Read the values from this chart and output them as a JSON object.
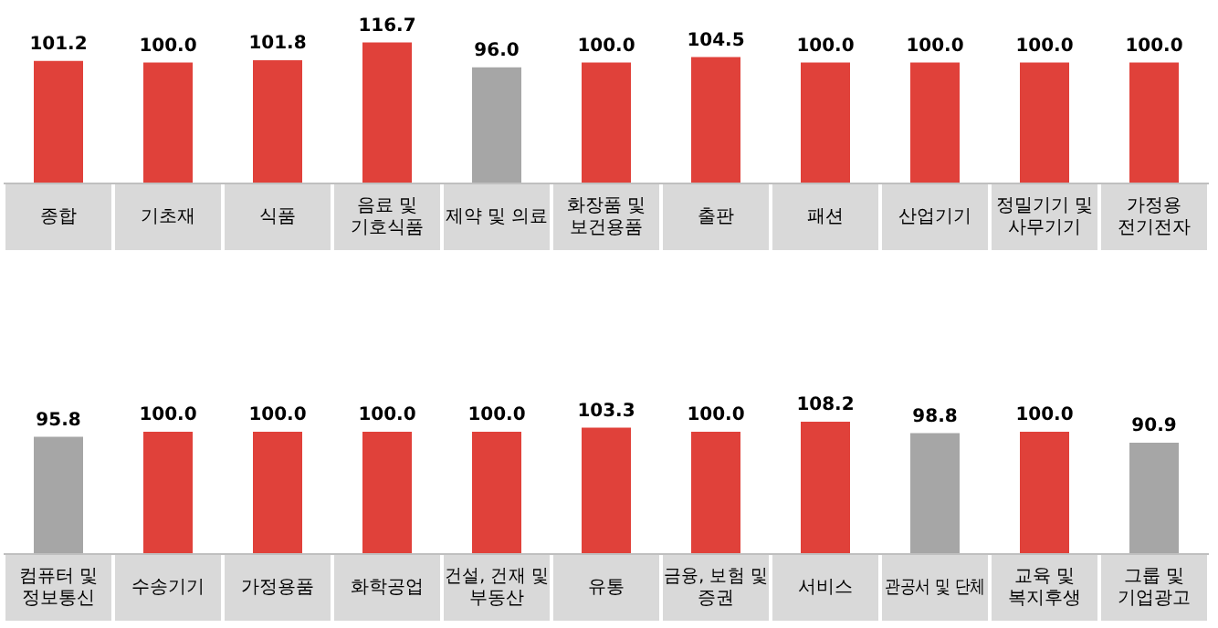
{
  "chart_data": [
    {
      "type": "bar",
      "categories": [
        "종합",
        "기초재",
        "식품",
        "음료 및\n기호식품",
        "제약 및 의료",
        "화장품 및\n보건용품",
        "출판",
        "패션",
        "산업기기",
        "정밀기기 및\n사무기기",
        "가정용\n전기전자"
      ],
      "values": [
        101.2,
        100.0,
        101.8,
        116.7,
        96.0,
        100.0,
        104.5,
        100.0,
        100.0,
        100.0,
        100.0
      ],
      "colors": [
        "#e0413a",
        "#e0413a",
        "#e0413a",
        "#e0413a",
        "#a6a6a6",
        "#e0413a",
        "#e0413a",
        "#e0413a",
        "#e0413a",
        "#e0413a",
        "#e0413a"
      ],
      "value_labels": [
        "101.2",
        "100.0",
        "101.8",
        "116.7",
        "96.0",
        "100.0",
        "104.5",
        "100.0",
        "100.0",
        "100.0",
        "100.0"
      ],
      "grid": false,
      "legend": false
    },
    {
      "type": "bar",
      "categories": [
        "컴퓨터 및\n정보통신",
        "수송기기",
        "가정용품",
        "화학공업",
        "건설, 건재 및\n부동산",
        "유통",
        "금융, 보험 및\n증권",
        "서비스",
        "관공서 및 단체",
        "교육 및\n복지후생",
        "그룹 및\n기업광고"
      ],
      "values": [
        95.8,
        100.0,
        100.0,
        100.0,
        100.0,
        103.3,
        100.0,
        108.2,
        98.8,
        100.0,
        90.9
      ],
      "colors": [
        "#a6a6a6",
        "#e0413a",
        "#e0413a",
        "#e0413a",
        "#e0413a",
        "#e0413a",
        "#e0413a",
        "#e0413a",
        "#a6a6a6",
        "#e0413a",
        "#a6a6a6"
      ],
      "value_labels": [
        "95.8",
        "100.0",
        "100.0",
        "100.0",
        "100.0",
        "103.3",
        "100.0",
        "108.2",
        "98.8",
        "100.0",
        "90.9"
      ],
      "grid": false,
      "legend": false
    }
  ]
}
